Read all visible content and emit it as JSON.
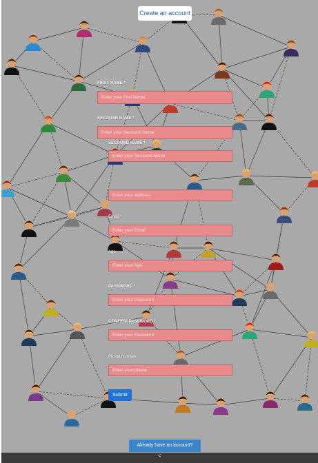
{
  "header": {
    "create_account_label": "Create an account"
  },
  "form": {
    "fields": [
      {
        "label": "FIRST NAME",
        "required": "*",
        "placeholder": "Enter your First Name"
      },
      {
        "label": "SECOUND NAME",
        "required": "*",
        "placeholder": "Enter your Secound Name"
      },
      {
        "label": "SECOUND NAME",
        "required": "*",
        "placeholder": "Enter your Secound Name"
      },
      {
        "label": "",
        "required": "*",
        "placeholder": "Enter your address"
      },
      {
        "label": "Email",
        "required": "*",
        "placeholder": "Enter your Email"
      },
      {
        "label": "Age",
        "required": "",
        "placeholder": "Enter your Age"
      },
      {
        "label": "PASSWORD",
        "required": "*",
        "placeholder": "Enter your Password"
      },
      {
        "label": "CONFIRM PASSWORD",
        "required": "*",
        "placeholder": "Enter your Password"
      },
      {
        "label": "Phone Number",
        "required": "",
        "placeholder": "Enter your phone"
      }
    ],
    "submit_label": "Submit"
  },
  "footer": {
    "already_label": "Already have an account?",
    "back_glyph": "<"
  },
  "colors": {
    "background": "#a9a9a9",
    "input_fill": "#e98a8d",
    "submit": "#1e74d4",
    "already": "#3a86c8",
    "bar": "#3b3b3b"
  },
  "background_image": {
    "icon": "social-network-people-icon"
  }
}
